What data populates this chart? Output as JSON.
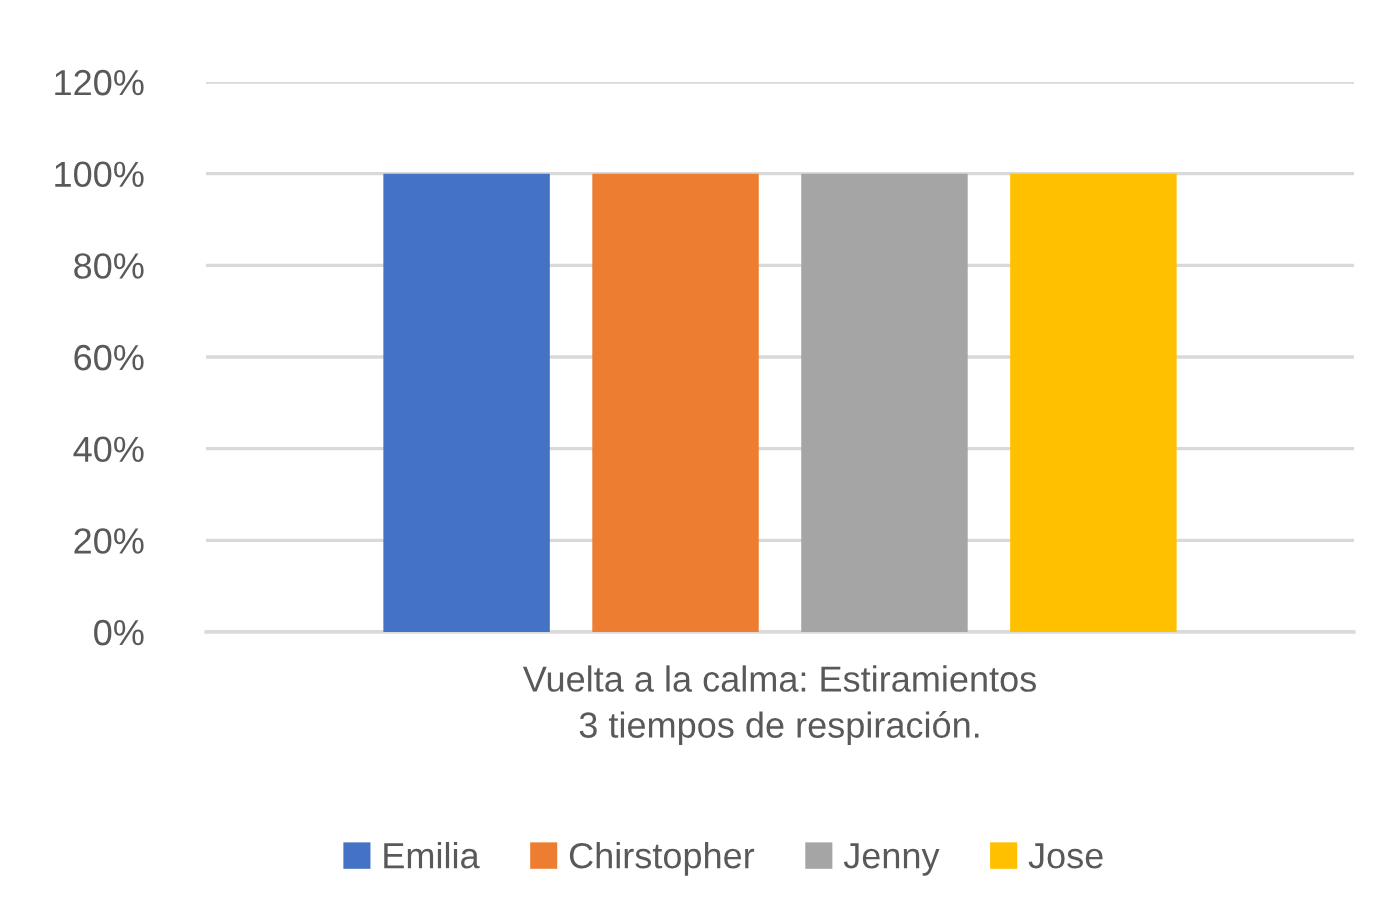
{
  "chart_data": {
    "type": "bar",
    "categories": [
      "Vuelta a la calma: Estiramientos\n3 tiempos de respiración."
    ],
    "series": [
      {
        "name": "Emilia",
        "color": "#4472c4",
        "values": [
          100
        ]
      },
      {
        "name": "Chirstopher",
        "color": "#ed7d31",
        "values": [
          100
        ]
      },
      {
        "name": "Jenny",
        "color": "#a5a5a5",
        "values": [
          100
        ]
      },
      {
        "name": "Jose",
        "color": "#ffc000",
        "values": [
          100
        ]
      }
    ],
    "ylim": [
      0,
      120
    ],
    "yticks": [
      {
        "value": 0,
        "label": "0%"
      },
      {
        "value": 20,
        "label": "20%"
      },
      {
        "value": 40,
        "label": "40%"
      },
      {
        "value": 60,
        "label": "60%"
      },
      {
        "value": 80,
        "label": "80%"
      },
      {
        "value": 100,
        "label": "100%"
      },
      {
        "value": 120,
        "label": "120%"
      }
    ],
    "grid": "y",
    "legend": "bottom"
  }
}
